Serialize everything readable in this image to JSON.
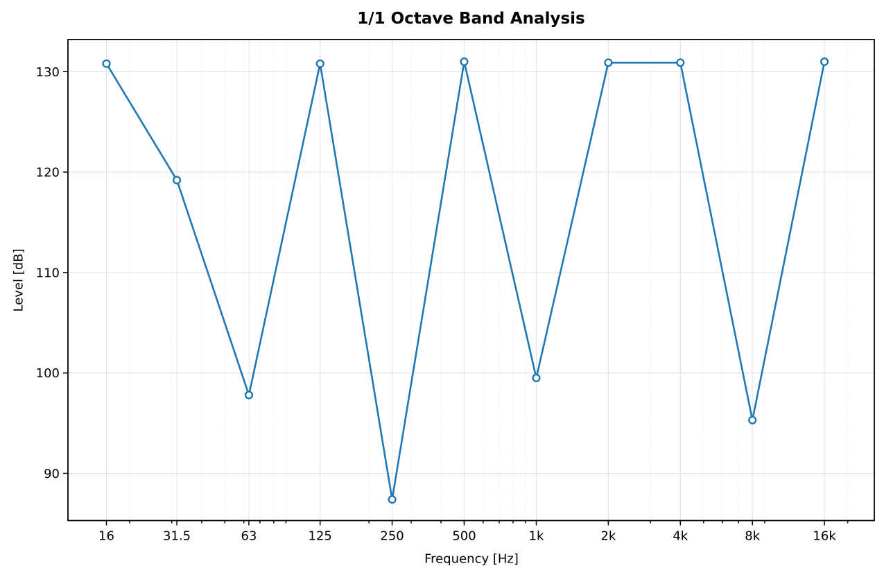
{
  "chart_data": {
    "type": "line",
    "title": "1/1 Octave Band Analysis",
    "xlabel": "Frequency [Hz]",
    "ylabel": "Level [dB]",
    "categories": [
      "16",
      "31.5",
      "63",
      "125",
      "250",
      "500",
      "1k",
      "2k",
      "4k",
      "8k",
      "16k"
    ],
    "frequencies_hz": [
      16,
      31.5,
      63,
      125,
      250,
      500,
      1000,
      2000,
      4000,
      8000,
      16000
    ],
    "values": [
      130.8,
      119.2,
      97.8,
      130.8,
      87.4,
      131.0,
      99.5,
      130.9,
      130.9,
      95.3,
      131.0
    ],
    "yticks": [
      90,
      100,
      110,
      120,
      130
    ],
    "ylim": [
      85.3,
      133.2
    ],
    "xscale": "log",
    "xlim_hz": [
      11.05,
      25840
    ],
    "grid": {
      "major": "on",
      "minor_x": "dotted",
      "minor_y": "off"
    },
    "legend": "none",
    "line_color": "#1f77b4",
    "marker": "open-circle",
    "marker_face": "#ffffff",
    "background": "#ffffff"
  }
}
